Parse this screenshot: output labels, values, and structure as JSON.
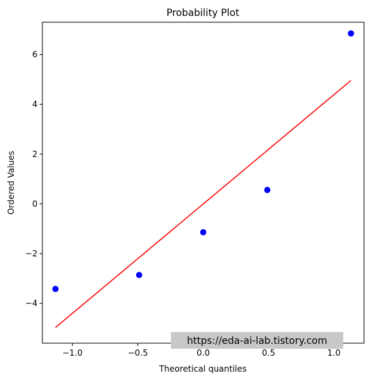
{
  "chart_data": {
    "type": "scatter",
    "title": "Probability Plot",
    "xlabel": "Theoretical quantiles",
    "ylabel": "Ordered Values",
    "xlim": [
      -1.23,
      1.23
    ],
    "ylim": [
      -5.6,
      7.3
    ],
    "x_ticks": [
      {
        "value": -1.0,
        "label": "−1.0"
      },
      {
        "value": -0.5,
        "label": "−0.5"
      },
      {
        "value": 0.0,
        "label": "0.0"
      },
      {
        "value": 0.5,
        "label": "0.5"
      },
      {
        "value": 1.0,
        "label": "1.0"
      }
    ],
    "y_ticks": [
      {
        "value": -4,
        "label": "−4"
      },
      {
        "value": -2,
        "label": "−2"
      },
      {
        "value": 0,
        "label": "0"
      },
      {
        "value": 2,
        "label": "2"
      },
      {
        "value": 4,
        "label": "4"
      },
      {
        "value": 6,
        "label": "6"
      }
    ],
    "points": {
      "x": [
        -1.13,
        -0.49,
        0.0,
        0.49,
        1.13
      ],
      "y": [
        -3.42,
        -2.86,
        -1.14,
        0.56,
        6.85
      ],
      "color": "#0000ff"
    },
    "fit_line": {
      "x": [
        -1.13,
        1.13
      ],
      "y": [
        -4.97,
        4.96
      ],
      "color": "#ff0000"
    },
    "grid": false,
    "watermark": "https://eda-ai-lab.tistory.com"
  }
}
